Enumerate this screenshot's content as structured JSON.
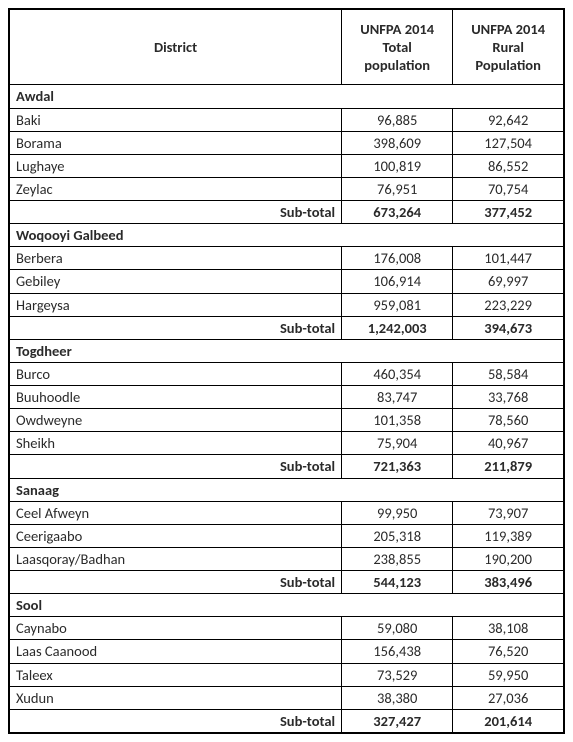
{
  "headers": {
    "district": "District",
    "total": "UNFPA 2014 Total population",
    "rural": "UNFPA 2014 Rural Population"
  },
  "regions": [
    {
      "name": "Awdal",
      "rows": [
        {
          "district": "Baki",
          "total": "96,885",
          "rural": "92,642"
        },
        {
          "district": "Borama",
          "total": "398,609",
          "rural": "127,504"
        },
        {
          "district": "Lughaye",
          "total": "100,819",
          "rural": "86,552"
        },
        {
          "district": "Zeylac",
          "total": "76,951",
          "rural": "70,754"
        }
      ],
      "subtotal": {
        "label": "Sub-total",
        "total": "673,264",
        "rural": "377,452"
      }
    },
    {
      "name": "Woqooyi Galbeed",
      "rows": [
        {
          "district": "Berbera",
          "total": "176,008",
          "rural": "101,447"
        },
        {
          "district": "Gebiley",
          "total": "106,914",
          "rural": "69,997"
        },
        {
          "district": "Hargeysa",
          "total": "959,081",
          "rural": "223,229"
        }
      ],
      "subtotal": {
        "label": "Sub-total",
        "total": "1,242,003",
        "rural": "394,673"
      }
    },
    {
      "name": "Togdheer",
      "rows": [
        {
          "district": "Burco",
          "total": "460,354",
          "rural": "58,584"
        },
        {
          "district": "Buuhoodle",
          "total": "83,747",
          "rural": "33,768"
        },
        {
          "district": "Owdweyne",
          "total": "101,358",
          "rural": "78,560"
        },
        {
          "district": "Sheikh",
          "total": "75,904",
          "rural": "40,967"
        }
      ],
      "subtotal": {
        "label": "Sub-total",
        "total": "721,363",
        "rural": "211,879"
      }
    },
    {
      "name": "Sanaag",
      "rows": [
        {
          "district": "Ceel Afweyn",
          "total": "99,950",
          "rural": "73,907"
        },
        {
          "district": "Ceerigaabo",
          "total": "205,318",
          "rural": "119,389"
        },
        {
          "district": "Laasqoray/Badhan",
          "total": "238,855",
          "rural": "190,200"
        }
      ],
      "subtotal": {
        "label": "Sub-total",
        "total": "544,123",
        "rural": "383,496"
      }
    },
    {
      "name": "Sool",
      "rows": [
        {
          "district": "Caynabo",
          "total": "59,080",
          "rural": "38,108"
        },
        {
          "district": "Laas Caanood",
          "total": "156,438",
          "rural": "76,520"
        },
        {
          "district": "Taleex",
          "total": "73,529",
          "rural": "59,950"
        },
        {
          "district": "Xudun",
          "total": "38,380",
          "rural": "27,036"
        }
      ],
      "subtotal": {
        "label": "Sub-total",
        "total": "327,427",
        "rural": "201,614"
      }
    }
  ]
}
